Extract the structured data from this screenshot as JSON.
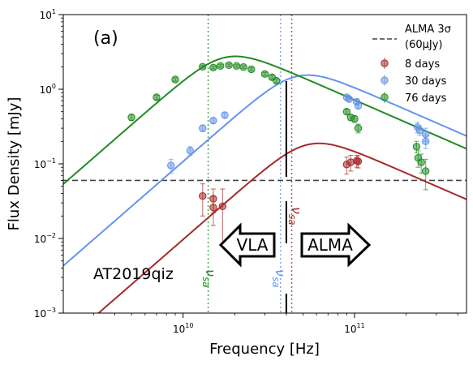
{
  "panel_label": "(a)",
  "object_label": "AT2019qiz",
  "arrows": {
    "left": "VLA",
    "right": "ALMA"
  },
  "nu_sa_labels": {
    "red": "νsa",
    "blue": "νsa",
    "green": "νsa"
  },
  "colors": {
    "red": "#a52a2a",
    "blue": "#6495ed",
    "green": "#228b22",
    "threshold": "#444444",
    "divider": "#000000"
  },
  "chart_data": {
    "type": "scatter",
    "xlabel": "Frequency [Hz]",
    "ylabel": "Flux Density [mJy]",
    "xscale": "log",
    "yscale": "log",
    "xlim": [
      2000000000.0,
      450000000000.0
    ],
    "ylim": [
      0.001,
      10
    ],
    "x_ticks": [
      {
        "value": 10000000000.0,
        "base": "10",
        "exp": "10"
      },
      {
        "value": 100000000000.0,
        "base": "10",
        "exp": "11"
      }
    ],
    "y_ticks": [
      {
        "value": 0.001,
        "base": "10",
        "exp": "−3"
      },
      {
        "value": 0.01,
        "base": "10",
        "exp": "−2"
      },
      {
        "value": 0.1,
        "base": "10",
        "exp": "−1"
      },
      {
        "value": 1,
        "base": "10",
        "exp": "0"
      },
      {
        "value": 10,
        "base": "10",
        "exp": "1"
      }
    ],
    "legend": {
      "placement": "upper right",
      "threshold_name": "ALMA 3σ",
      "threshold_sub": "(60μJy)"
    },
    "threshold_mJy": 0.06,
    "divider_x": 40000000000.0,
    "series": [
      {
        "name": "8 days",
        "color_key": "red",
        "nu_sa": 43000000000.0,
        "peak_mJy": 0.14,
        "points": [
          {
            "x": 13000000000.0,
            "y": 0.037,
            "err": 0.017
          },
          {
            "x": 15000000000.0,
            "y": 0.034,
            "err": 0.012
          },
          {
            "x": 15000000000.0,
            "y": 0.026,
            "err": 0.011
          },
          {
            "x": 17000000000.0,
            "y": 0.027,
            "err": 0.019
          },
          {
            "x": 90000000000.0,
            "y": 0.098,
            "err": 0.025
          },
          {
            "x": 95000000000.0,
            "y": 0.105,
            "err": 0.025
          },
          {
            "x": 103000000000.0,
            "y": 0.11,
            "err": 0.02
          },
          {
            "x": 105000000000.0,
            "y": 0.108,
            "err": 0.02
          }
        ]
      },
      {
        "name": "30 days",
        "color_key": "blue",
        "nu_sa": 37000000000.0,
        "peak_mJy": 1.15,
        "points": [
          {
            "x": 8500000000.0,
            "y": 0.095,
            "err": 0.02
          },
          {
            "x": 11000000000.0,
            "y": 0.15,
            "err": 0.02
          },
          {
            "x": 13000000000.0,
            "y": 0.3,
            "err": 0.03
          },
          {
            "x": 15000000000.0,
            "y": 0.38,
            "err": 0.03
          },
          {
            "x": 17500000000.0,
            "y": 0.45,
            "err": 0.04
          },
          {
            "x": 90000000000.0,
            "y": 0.78,
            "err": 0.05
          },
          {
            "x": 93000000000.0,
            "y": 0.74,
            "err": 0.05
          },
          {
            "x": 103000000000.0,
            "y": 0.68,
            "err": 0.05
          },
          {
            "x": 105000000000.0,
            "y": 0.6,
            "err": 0.05
          },
          {
            "x": 233000000000.0,
            "y": 0.31,
            "err": 0.05
          },
          {
            "x": 240000000000.0,
            "y": 0.28,
            "err": 0.04
          },
          {
            "x": 260000000000.0,
            "y": 0.25,
            "err": 0.05
          },
          {
            "x": 260000000000.0,
            "y": 0.2,
            "err": 0.04
          }
        ]
      },
      {
        "name": "76 days",
        "color_key": "green",
        "nu_sa": 14000000000.0,
        "peak_mJy": 2.05,
        "points": [
          {
            "x": 5000000000.0,
            "y": 0.42,
            "err": 0.04
          },
          {
            "x": 7000000000.0,
            "y": 0.78,
            "err": 0.05
          },
          {
            "x": 9000000000.0,
            "y": 1.35,
            "err": 0.07
          },
          {
            "x": 13000000000.0,
            "y": 2.0,
            "err": 0.08
          },
          {
            "x": 15000000000.0,
            "y": 1.95,
            "err": 0.08
          },
          {
            "x": 16500000000.0,
            "y": 2.05,
            "err": 0.08
          },
          {
            "x": 18500000000.0,
            "y": 2.1,
            "err": 0.08
          },
          {
            "x": 20500000000.0,
            "y": 2.05,
            "err": 0.08
          },
          {
            "x": 22500000000.0,
            "y": 1.98,
            "err": 0.08
          },
          {
            "x": 25000000000.0,
            "y": 1.85,
            "err": 0.08
          },
          {
            "x": 30000000000.0,
            "y": 1.6,
            "err": 0.08
          },
          {
            "x": 33000000000.0,
            "y": 1.45,
            "err": 0.08
          },
          {
            "x": 35000000000.0,
            "y": 1.3,
            "err": 0.08
          },
          {
            "x": 90000000000.0,
            "y": 0.5,
            "err": 0.04
          },
          {
            "x": 95000000000.0,
            "y": 0.42,
            "err": 0.04
          },
          {
            "x": 100000000000.0,
            "y": 0.4,
            "err": 0.04
          },
          {
            "x": 105000000000.0,
            "y": 0.3,
            "err": 0.04
          },
          {
            "x": 230000000000.0,
            "y": 0.17,
            "err": 0.03
          },
          {
            "x": 235000000000.0,
            "y": 0.12,
            "err": 0.03
          },
          {
            "x": 245000000000.0,
            "y": 0.105,
            "err": 0.03
          },
          {
            "x": 260000000000.0,
            "y": 0.08,
            "err": 0.035
          }
        ]
      }
    ]
  }
}
